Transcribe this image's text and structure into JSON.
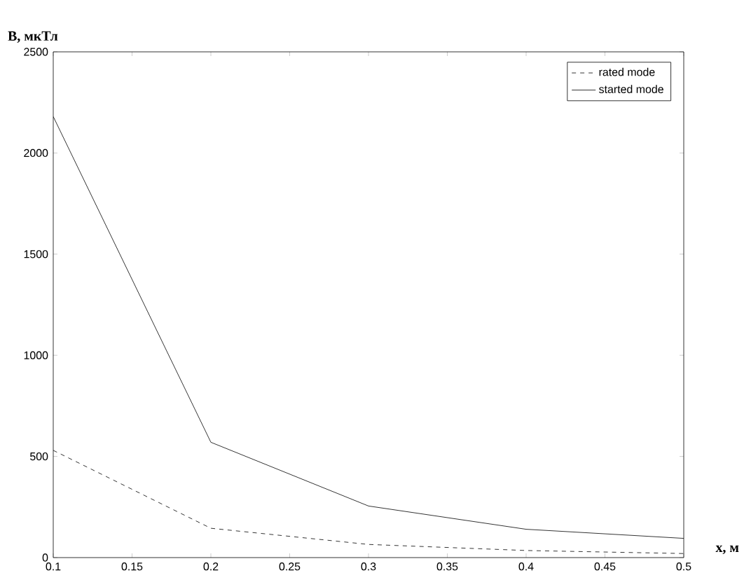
{
  "chart_data": {
    "type": "line",
    "ylabel": "B, мкТл",
    "xlabel": "x, м",
    "x": [
      0.1,
      0.2,
      0.3,
      0.4,
      0.5
    ],
    "series": [
      {
        "name": "rated mode",
        "color": "#000000",
        "line_style": "dashed",
        "values": [
          530,
          145,
          65,
          35,
          20
        ]
      },
      {
        "name": "started mode",
        "color": "#000000",
        "line_style": "solid",
        "values": [
          2180,
          570,
          255,
          140,
          95
        ]
      }
    ],
    "xlim": [
      0.1,
      0.5
    ],
    "ylim": [
      0,
      2500
    ],
    "xticks": [
      0.1,
      0.15,
      0.2,
      0.25,
      0.3,
      0.35,
      0.4,
      0.45,
      0.5
    ],
    "yticks": [
      0,
      500,
      1000,
      1500,
      2000,
      2500
    ],
    "legend": "top right",
    "grid": false,
    "marker": "none"
  }
}
